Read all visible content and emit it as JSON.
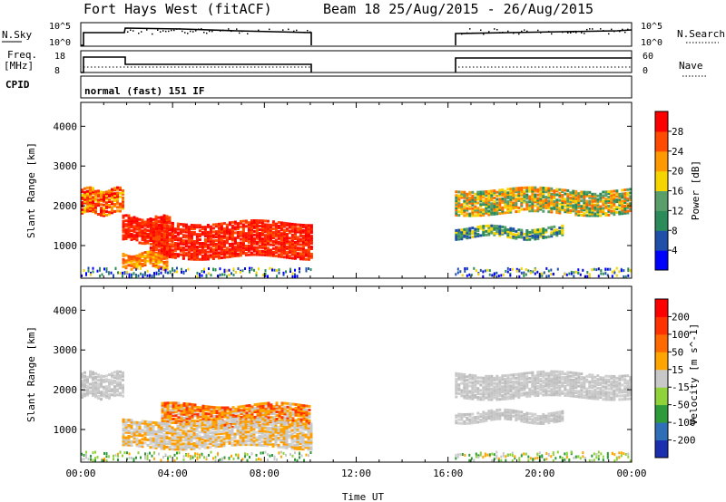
{
  "header": {
    "station": "Fort Hays West (fitACF)",
    "beam_date": "Beam 18 25/Aug/2015 - 26/Aug/2015"
  },
  "strips": {
    "nsky_label": "N.Sky",
    "nsearch_label": "N.Search",
    "nsky_ticks": [
      "10^5",
      "10^0"
    ],
    "nsearch_ticks": [
      "10^5",
      "10^0"
    ],
    "freq_label": "Freq.",
    "freq_unit": "[MHz]",
    "freq_ticks": [
      "18",
      "8"
    ],
    "nave_label": "Nave",
    "nave_ticks": [
      "60",
      "0"
    ],
    "cpid_label": "CPID",
    "cpid_text": "normal (fast) 151 IF"
  },
  "chart_data": [
    {
      "type": "heatmap",
      "name": "power-panel",
      "ylabel": "Slant Range [km]",
      "yticks": [
        "4000",
        "3000",
        "2000",
        "1000"
      ],
      "ylim": [
        180,
        4600
      ],
      "xlim_hours": [
        0,
        24
      ],
      "colorbar": {
        "label": "Power [dB]",
        "ticks": [
          "28",
          "24",
          "20",
          "16",
          "12",
          "8",
          "4"
        ],
        "colors": [
          "#0000ff",
          "#1f4fa8",
          "#2b8c5a",
          "#5a9e6a",
          "#f5d400",
          "#ff9900",
          "#ff4a00",
          "#ff0000"
        ]
      },
      "data_gap_hours": [
        10.0,
        16.3
      ],
      "echo_regions": [
        {
          "t0": 0.0,
          "t1": 1.8,
          "r0": 1800,
          "r1": 2400,
          "level": "orange-red"
        },
        {
          "t0": 1.8,
          "t1": 4.0,
          "r0": 1100,
          "r1": 1700,
          "level": "red"
        },
        {
          "t0": 3.0,
          "t1": 10.0,
          "r0": 700,
          "r1": 1600,
          "level": "red"
        },
        {
          "t0": 1.8,
          "t1": 3.8,
          "r0": 450,
          "r1": 800,
          "level": "orange"
        },
        {
          "t0": 16.3,
          "t1": 24.0,
          "r0": 1800,
          "r1": 2400,
          "level": "orange-green"
        },
        {
          "t0": 16.3,
          "t1": 21.0,
          "r0": 1200,
          "r1": 1450,
          "level": "green"
        }
      ]
    },
    {
      "type": "heatmap",
      "name": "velocity-panel",
      "ylabel": "Slant Range [km]",
      "yticks": [
        "4000",
        "3000",
        "2000",
        "1000"
      ],
      "ylim": [
        180,
        4600
      ],
      "xlim_hours": [
        0,
        24
      ],
      "colorbar": {
        "label": "Velocity [m s^-1]",
        "ticks": [
          "200",
          "100",
          "50",
          "15",
          "-15",
          "-50",
          "-100",
          "-200"
        ],
        "colors": [
          "#1a2fb0",
          "#2f6fb8",
          "#2f9a3a",
          "#8fd23a",
          "#c8c8c8",
          "#ffa500",
          "#ff6a00",
          "#ff3200",
          "#ff0000"
        ]
      },
      "xlabel": "Time UT",
      "xticks": [
        "00:00",
        "04:00",
        "08:00",
        "12:00",
        "16:00",
        "20:00",
        "00:00"
      ],
      "data_gap_hours": [
        10.0,
        16.3
      ],
      "echo_regions": [
        {
          "t0": 0.0,
          "t1": 1.8,
          "r0": 1800,
          "r1": 2400,
          "level": "grey"
        },
        {
          "t0": 3.5,
          "t1": 10.0,
          "r0": 1100,
          "r1": 1600,
          "level": "orange"
        },
        {
          "t0": 1.8,
          "t1": 10.0,
          "r0": 550,
          "r1": 1200,
          "level": "grey-orange"
        },
        {
          "t0": 16.3,
          "t1": 24.0,
          "r0": 1800,
          "r1": 2400,
          "level": "grey"
        },
        {
          "t0": 16.3,
          "t1": 21.0,
          "r0": 1200,
          "r1": 1450,
          "level": "grey"
        }
      ]
    }
  ]
}
